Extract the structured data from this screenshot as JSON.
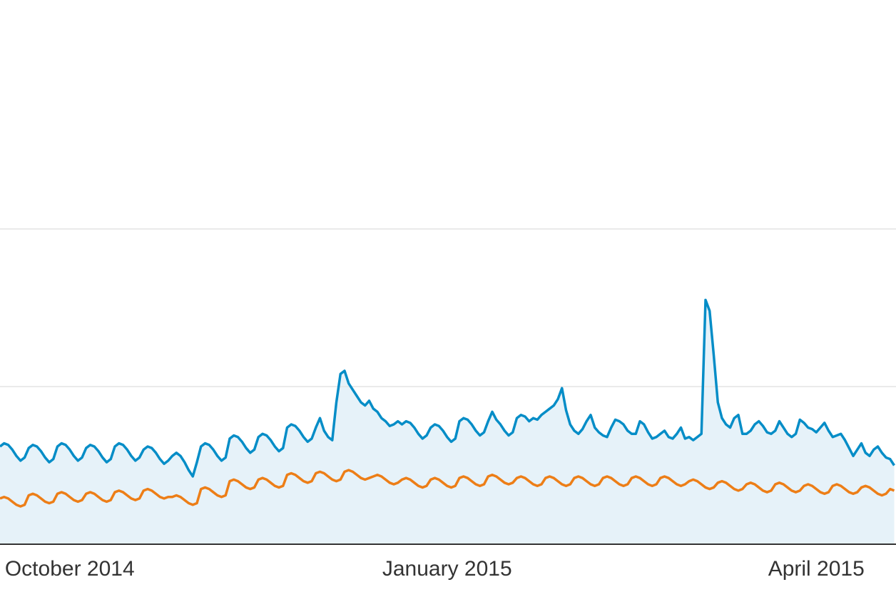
{
  "chart_data": {
    "type": "line",
    "categories": [
      null,
      null,
      null,
      null,
      null,
      null,
      null,
      null,
      null,
      null,
      null,
      null,
      null,
      null,
      null,
      null,
      null,
      "October 2014",
      null,
      null,
      null,
      null,
      null,
      null,
      null,
      null,
      null,
      null,
      null,
      null,
      null,
      null,
      null,
      null,
      null,
      null,
      null,
      null,
      null,
      null,
      null,
      null,
      null,
      null,
      null,
      null,
      null,
      null,
      null,
      null,
      null,
      null,
      null,
      null,
      null,
      null,
      null,
      null,
      null,
      null,
      null,
      null,
      null,
      null,
      null,
      null,
      null,
      null,
      null,
      null,
      null,
      null,
      null,
      null,
      null,
      null,
      null,
      null,
      null,
      null,
      null,
      null,
      null,
      null,
      null,
      null,
      null,
      null,
      null,
      null,
      null,
      null,
      null,
      null,
      null,
      null,
      null,
      null,
      null,
      null,
      null,
      null,
      null,
      null,
      null,
      null,
      null,
      null,
      null,
      "January 2015",
      null,
      null,
      null,
      null,
      null,
      null,
      null,
      null,
      null,
      null,
      null,
      null,
      null,
      null,
      null,
      null,
      null,
      null,
      null,
      null,
      null,
      null,
      null,
      null,
      null,
      null,
      null,
      null,
      null,
      null,
      null,
      null,
      null,
      null,
      null,
      null,
      null,
      null,
      null,
      null,
      null,
      null,
      null,
      null,
      null,
      null,
      null,
      null,
      null,
      null,
      null,
      null,
      null,
      null,
      null,
      null,
      null,
      null,
      null,
      null,
      null,
      null,
      null,
      null,
      null,
      null,
      null,
      null,
      null,
      null,
      null,
      null,
      null,
      null,
      null,
      null,
      null,
      null,
      null,
      null,
      null,
      null,
      null,
      null,
      null,
      null,
      null,
      null,
      null,
      "April 2015",
      null,
      null,
      null,
      null,
      null,
      null,
      null,
      null,
      null,
      null,
      null,
      null,
      null,
      null,
      null,
      null,
      null,
      null,
      null
    ],
    "series": [
      {
        "color": "#058dc7",
        "fill": "#e6f2f9",
        "values": [
          0.62,
          0.64,
          0.63,
          0.6,
          0.56,
          0.53,
          0.55,
          0.61,
          0.63,
          0.62,
          0.59,
          0.55,
          0.52,
          0.54,
          0.62,
          0.64,
          0.63,
          0.6,
          0.56,
          0.53,
          0.55,
          0.61,
          0.63,
          0.62,
          0.59,
          0.55,
          0.52,
          0.54,
          0.62,
          0.64,
          0.63,
          0.6,
          0.56,
          0.53,
          0.55,
          0.6,
          0.62,
          0.61,
          0.58,
          0.54,
          0.51,
          0.53,
          0.56,
          0.58,
          0.56,
          0.52,
          0.47,
          0.43,
          0.52,
          0.62,
          0.64,
          0.63,
          0.6,
          0.56,
          0.53,
          0.55,
          0.67,
          0.69,
          0.68,
          0.65,
          0.61,
          0.58,
          0.6,
          0.68,
          0.7,
          0.69,
          0.66,
          0.62,
          0.59,
          0.61,
          0.74,
          0.76,
          0.75,
          0.72,
          0.68,
          0.65,
          0.67,
          0.74,
          0.8,
          0.72,
          0.68,
          0.66,
          0.9,
          1.08,
          1.1,
          1.02,
          0.98,
          0.94,
          0.9,
          0.88,
          0.91,
          0.86,
          0.84,
          0.8,
          0.78,
          0.75,
          0.76,
          0.78,
          0.76,
          0.78,
          0.77,
          0.74,
          0.7,
          0.67,
          0.69,
          0.74,
          0.76,
          0.75,
          0.72,
          0.68,
          0.65,
          0.67,
          0.78,
          0.8,
          0.79,
          0.76,
          0.72,
          0.69,
          0.71,
          0.78,
          0.84,
          0.79,
          0.76,
          0.72,
          0.69,
          0.71,
          0.8,
          0.82,
          0.81,
          0.78,
          0.8,
          0.79,
          0.82,
          0.84,
          0.86,
          0.88,
          0.92,
          0.99,
          0.85,
          0.76,
          0.72,
          0.7,
          0.73,
          0.78,
          0.82,
          0.74,
          0.71,
          0.69,
          0.68,
          0.74,
          0.79,
          0.78,
          0.76,
          0.72,
          0.7,
          0.7,
          0.78,
          0.76,
          0.71,
          0.67,
          0.68,
          0.7,
          0.72,
          0.68,
          0.67,
          0.7,
          0.74,
          0.67,
          0.68,
          0.66,
          0.68,
          0.7,
          1.55,
          1.48,
          1.2,
          0.9,
          0.8,
          0.76,
          0.74,
          0.8,
          0.82,
          0.7,
          0.7,
          0.72,
          0.76,
          0.78,
          0.75,
          0.71,
          0.7,
          0.72,
          0.78,
          0.74,
          0.7,
          0.68,
          0.7,
          0.79,
          0.77,
          0.74,
          0.73,
          0.71,
          0.74,
          0.77,
          0.72,
          0.68,
          0.69,
          0.7,
          0.66,
          0.61,
          0.56,
          0.6,
          0.64,
          0.58,
          0.56,
          0.6,
          0.62,
          0.58,
          0.55,
          0.54,
          0.5
        ]
      },
      {
        "color": "#ed7e17",
        "values": [
          0.29,
          0.3,
          0.29,
          0.27,
          0.25,
          0.24,
          0.25,
          0.31,
          0.32,
          0.31,
          0.29,
          0.27,
          0.26,
          0.27,
          0.32,
          0.33,
          0.32,
          0.3,
          0.28,
          0.27,
          0.28,
          0.32,
          0.33,
          0.32,
          0.3,
          0.28,
          0.27,
          0.28,
          0.33,
          0.34,
          0.33,
          0.31,
          0.29,
          0.28,
          0.29,
          0.34,
          0.35,
          0.34,
          0.32,
          0.3,
          0.29,
          0.3,
          0.3,
          0.31,
          0.3,
          0.28,
          0.26,
          0.25,
          0.26,
          0.35,
          0.36,
          0.35,
          0.33,
          0.31,
          0.3,
          0.31,
          0.4,
          0.41,
          0.4,
          0.38,
          0.36,
          0.35,
          0.36,
          0.41,
          0.42,
          0.41,
          0.39,
          0.37,
          0.36,
          0.37,
          0.44,
          0.45,
          0.44,
          0.42,
          0.4,
          0.39,
          0.4,
          0.45,
          0.46,
          0.45,
          0.43,
          0.41,
          0.4,
          0.41,
          0.46,
          0.47,
          0.46,
          0.44,
          0.42,
          0.41,
          0.42,
          0.43,
          0.44,
          0.43,
          0.41,
          0.39,
          0.38,
          0.39,
          0.41,
          0.42,
          0.41,
          0.39,
          0.37,
          0.36,
          0.37,
          0.41,
          0.42,
          0.41,
          0.39,
          0.37,
          0.36,
          0.37,
          0.42,
          0.43,
          0.42,
          0.4,
          0.38,
          0.37,
          0.38,
          0.43,
          0.44,
          0.43,
          0.41,
          0.39,
          0.38,
          0.39,
          0.42,
          0.43,
          0.42,
          0.4,
          0.38,
          0.37,
          0.38,
          0.42,
          0.43,
          0.42,
          0.4,
          0.38,
          0.37,
          0.38,
          0.42,
          0.43,
          0.42,
          0.4,
          0.38,
          0.37,
          0.38,
          0.42,
          0.43,
          0.42,
          0.4,
          0.38,
          0.37,
          0.38,
          0.42,
          0.43,
          0.42,
          0.4,
          0.38,
          0.37,
          0.38,
          0.42,
          0.43,
          0.42,
          0.4,
          0.38,
          0.37,
          0.38,
          0.4,
          0.41,
          0.4,
          0.38,
          0.36,
          0.35,
          0.36,
          0.39,
          0.4,
          0.39,
          0.37,
          0.35,
          0.34,
          0.35,
          0.38,
          0.39,
          0.38,
          0.36,
          0.34,
          0.33,
          0.34,
          0.38,
          0.39,
          0.38,
          0.36,
          0.34,
          0.33,
          0.34,
          0.37,
          0.38,
          0.37,
          0.35,
          0.33,
          0.32,
          0.33,
          0.37,
          0.38,
          0.37,
          0.35,
          0.33,
          0.32,
          0.33,
          0.36,
          0.37,
          0.36,
          0.34,
          0.32,
          0.31,
          0.32,
          0.35,
          0.34
        ]
      }
    ],
    "ylim": [
      0,
      3
    ],
    "yticks": [
      0,
      1,
      2
    ],
    "grid": true
  }
}
